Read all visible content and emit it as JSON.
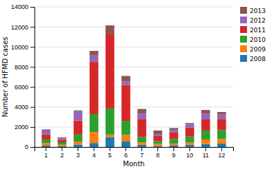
{
  "chart_data": {
    "type": "bar",
    "stacked": true,
    "xlabel": "Month",
    "ylabel": "Number of HFMD cases",
    "categories": [
      "1",
      "2",
      "3",
      "4",
      "5",
      "6",
      "7",
      "8",
      "9",
      "10",
      "11",
      "12"
    ],
    "series": [
      {
        "name": "2008",
        "values": [
          150,
          80,
          250,
          400,
          1000,
          550,
          200,
          100,
          150,
          200,
          300,
          350
        ]
      },
      {
        "name": "2009",
        "values": [
          250,
          150,
          300,
          1100,
          250,
          650,
          250,
          200,
          200,
          250,
          450,
          450
        ]
      },
      {
        "name": "2010",
        "values": [
          350,
          250,
          700,
          1800,
          2600,
          1400,
          550,
          300,
          450,
          600,
          900,
          900
        ]
      },
      {
        "name": "2011",
        "values": [
          500,
          250,
          1400,
          5200,
          7400,
          3600,
          1800,
          500,
          650,
          900,
          1100,
          1100
        ]
      },
      {
        "name": "2012",
        "values": [
          400,
          200,
          900,
          700,
          0,
          350,
          550,
          200,
          250,
          350,
          600,
          450
        ]
      },
      {
        "name": "2013",
        "values": [
          100,
          50,
          100,
          400,
          900,
          550,
          450,
          350,
          200,
          100,
          350,
          250
        ]
      }
    ],
    "ylim": [
      0,
      14000
    ],
    "yticks": [
      0,
      2000,
      4000,
      6000,
      8000,
      10000,
      12000,
      14000
    ],
    "grid": true,
    "legend": "right"
  }
}
